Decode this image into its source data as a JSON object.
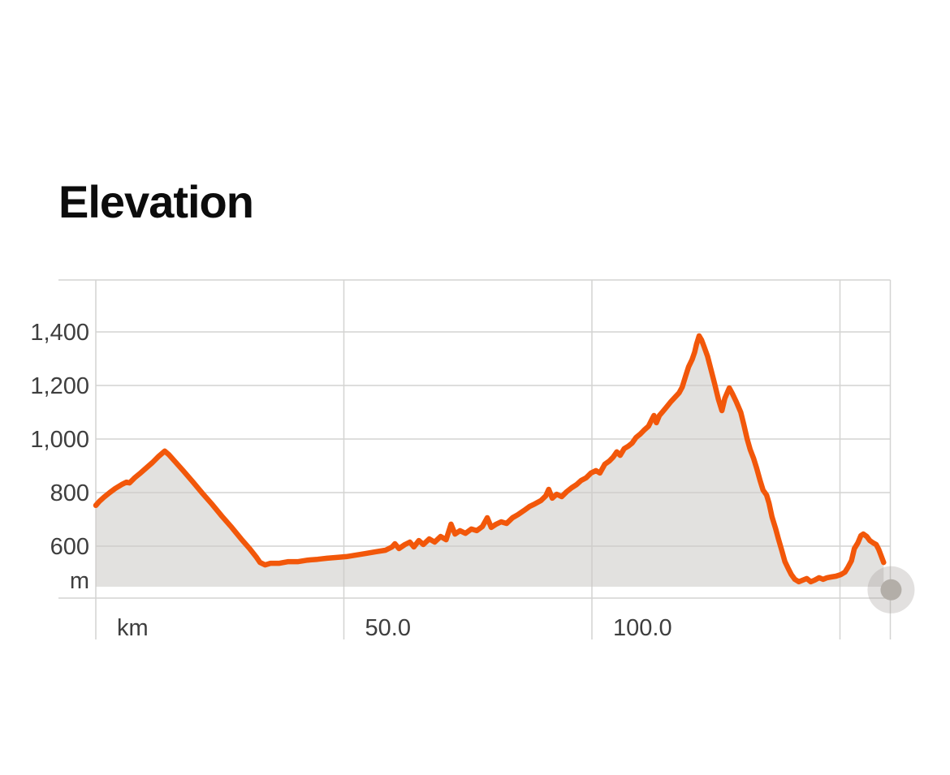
{
  "title": "Elevation",
  "colors": {
    "line": "#f2570a",
    "area_fill": "rgba(203,201,197,0.55)",
    "grid": "#d4d4d2",
    "axis_text": "#3e3e3e",
    "title_text": "#0c0c0c",
    "marker_outer": "rgba(164,160,155,0.32)",
    "marker_inner": "#b3aea8"
  },
  "chart_data": {
    "type": "area",
    "title": "Elevation",
    "xlabel": "km",
    "ylabel": "m",
    "grid": true,
    "legend": false,
    "xlim": [
      0,
      160
    ],
    "ylim": [
      448,
      1590
    ],
    "area_base_m": 448,
    "x_ticks": [
      {
        "km": 0,
        "label": "km"
      },
      {
        "km": 50,
        "label": "50.0"
      },
      {
        "km": 100,
        "label": "100.0"
      },
      {
        "km": 150,
        "label": ""
      }
    ],
    "y_ticks": [
      {
        "m": 1400,
        "label": "1,400"
      },
      {
        "m": 1200,
        "label": "1,200"
      },
      {
        "m": 1000,
        "label": "1,000"
      },
      {
        "m": 800,
        "label": "800"
      },
      {
        "m": 600,
        "label": "600"
      }
    ],
    "y_unit_label": "m",
    "end_marker": {
      "km": 160.3,
      "m": 437
    },
    "series": [
      {
        "name": "elevation_profile",
        "points_km_m": [
          [
            0,
            752
          ],
          [
            0.7,
            767
          ],
          [
            1.6,
            782
          ],
          [
            2.8,
            800
          ],
          [
            3.9,
            815
          ],
          [
            5.2,
            830
          ],
          [
            6.2,
            839
          ],
          [
            6.8,
            836
          ],
          [
            7.8,
            855
          ],
          [
            8.8,
            870
          ],
          [
            10.1,
            891
          ],
          [
            11.4,
            912
          ],
          [
            12.7,
            936
          ],
          [
            13.9,
            955
          ],
          [
            14.7,
            942
          ],
          [
            16,
            915
          ],
          [
            17.6,
            882
          ],
          [
            19.6,
            839
          ],
          [
            21.5,
            797
          ],
          [
            23.5,
            755
          ],
          [
            25.4,
            712
          ],
          [
            27.4,
            670
          ],
          [
            29.3,
            627
          ],
          [
            31,
            591
          ],
          [
            32.4,
            558
          ],
          [
            33.1,
            539
          ],
          [
            34.1,
            530
          ],
          [
            35.2,
            536
          ],
          [
            37,
            536
          ],
          [
            38.8,
            542
          ],
          [
            40.8,
            542
          ],
          [
            42.7,
            548
          ],
          [
            44.7,
            551
          ],
          [
            46.6,
            555
          ],
          [
            48.6,
            558
          ],
          [
            50.5,
            561
          ],
          [
            52.5,
            567
          ],
          [
            54.5,
            573
          ],
          [
            56.4,
            579
          ],
          [
            58.4,
            585
          ],
          [
            59.7,
            597
          ],
          [
            60.3,
            609
          ],
          [
            61.1,
            591
          ],
          [
            62.3,
            606
          ],
          [
            63.3,
            615
          ],
          [
            64.1,
            597
          ],
          [
            65.1,
            621
          ],
          [
            66,
            606
          ],
          [
            67.2,
            627
          ],
          [
            68.3,
            615
          ],
          [
            69.5,
            636
          ],
          [
            70.6,
            624
          ],
          [
            71.6,
            682
          ],
          [
            72.4,
            645
          ],
          [
            73.4,
            658
          ],
          [
            74.5,
            648
          ],
          [
            75.7,
            664
          ],
          [
            76.8,
            658
          ],
          [
            77.9,
            673
          ],
          [
            78.9,
            706
          ],
          [
            79.7,
            670
          ],
          [
            80.7,
            682
          ],
          [
            81.7,
            691
          ],
          [
            82.8,
            685
          ],
          [
            84,
            706
          ],
          [
            85.1,
            718
          ],
          [
            86.3,
            733
          ],
          [
            87.4,
            748
          ],
          [
            88.5,
            758
          ],
          [
            89.7,
            770
          ],
          [
            90.7,
            788
          ],
          [
            91.3,
            812
          ],
          [
            92,
            779
          ],
          [
            92.9,
            794
          ],
          [
            93.9,
            785
          ],
          [
            94.9,
            803
          ],
          [
            95.9,
            818
          ],
          [
            96.9,
            830
          ],
          [
            97.8,
            845
          ],
          [
            98.8,
            855
          ],
          [
            99.8,
            873
          ],
          [
            100.8,
            882
          ],
          [
            101.6,
            873
          ],
          [
            102.6,
            906
          ],
          [
            103.5,
            918
          ],
          [
            104.3,
            933
          ],
          [
            105,
            952
          ],
          [
            105.7,
            939
          ],
          [
            106.5,
            964
          ],
          [
            107.3,
            973
          ],
          [
            108.1,
            985
          ],
          [
            108.9,
            1006
          ],
          [
            109.7,
            1018
          ],
          [
            110.5,
            1033
          ],
          [
            111.4,
            1048
          ],
          [
            112,
            1070
          ],
          [
            112.5,
            1088
          ],
          [
            113,
            1061
          ],
          [
            113.6,
            1088
          ],
          [
            114.3,
            1103
          ],
          [
            115.1,
            1121
          ],
          [
            115.9,
            1139
          ],
          [
            116.7,
            1155
          ],
          [
            117.6,
            1173
          ],
          [
            118.2,
            1194
          ],
          [
            118.9,
            1236
          ],
          [
            119.5,
            1270
          ],
          [
            120.2,
            1297
          ],
          [
            120.7,
            1324
          ],
          [
            121.1,
            1355
          ],
          [
            121.6,
            1385
          ],
          [
            122.1,
            1370
          ],
          [
            122.6,
            1345
          ],
          [
            123.3,
            1309
          ],
          [
            123.9,
            1267
          ],
          [
            124.7,
            1209
          ],
          [
            125.5,
            1148
          ],
          [
            126.2,
            1106
          ],
          [
            126.8,
            1152
          ],
          [
            127.7,
            1191
          ],
          [
            128.3,
            1170
          ],
          [
            129.1,
            1139
          ],
          [
            130,
            1100
          ],
          [
            130.6,
            1055
          ],
          [
            131.3,
            1000
          ],
          [
            131.9,
            961
          ],
          [
            132.6,
            927
          ],
          [
            133.2,
            891
          ],
          [
            133.9,
            845
          ],
          [
            134.5,
            809
          ],
          [
            135.2,
            791
          ],
          [
            135.7,
            761
          ],
          [
            136.3,
            709
          ],
          [
            137,
            667
          ],
          [
            137.6,
            627
          ],
          [
            138.3,
            582
          ],
          [
            138.9,
            542
          ],
          [
            139.6,
            515
          ],
          [
            140.2,
            494
          ],
          [
            140.9,
            476
          ],
          [
            141.7,
            467
          ],
          [
            142.5,
            473
          ],
          [
            143.3,
            479
          ],
          [
            144.1,
            467
          ],
          [
            144.9,
            473
          ],
          [
            145.8,
            482
          ],
          [
            146.6,
            476
          ],
          [
            147.4,
            482
          ],
          [
            148.2,
            485
          ],
          [
            149.2,
            488
          ],
          [
            150.2,
            494
          ],
          [
            151,
            503
          ],
          [
            151.6,
            521
          ],
          [
            152.3,
            545
          ],
          [
            152.9,
            591
          ],
          [
            153.6,
            612
          ],
          [
            154.2,
            639
          ],
          [
            154.7,
            645
          ],
          [
            155.4,
            636
          ],
          [
            156,
            621
          ],
          [
            156.7,
            612
          ],
          [
            157.3,
            606
          ],
          [
            157.8,
            588
          ],
          [
            158.3,
            564
          ],
          [
            158.8,
            539
          ]
        ]
      }
    ]
  }
}
